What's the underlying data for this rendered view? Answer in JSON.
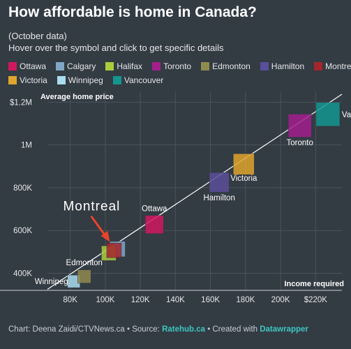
{
  "header": {
    "title": "How affordable is home in Canada?",
    "subtitle_line1": "(October data)",
    "subtitle_line2": "Hover over the symbol and click to get specific details"
  },
  "legend": [
    {
      "label": "Ottawa",
      "color": "#d1185f"
    },
    {
      "label": "Calgary",
      "color": "#7fa7c5"
    },
    {
      "label": "Halifax",
      "color": "#aacd3c"
    },
    {
      "label": "Toronto",
      "color": "#a31f8d"
    },
    {
      "label": "Edmonton",
      "color": "#8f8a4d"
    },
    {
      "label": "Hamilton",
      "color": "#5a4f9a"
    },
    {
      "label": "Montreal",
      "color": "#a5252c"
    },
    {
      "label": "Victoria",
      "color": "#e0a52c"
    },
    {
      "label": "Winnipeg",
      "color": "#a9dcef"
    },
    {
      "label": "Vancouver",
      "color": "#13968f"
    }
  ],
  "annotation": {
    "text": "Montreal",
    "arrow_color": "#e8432b"
  },
  "chart_data": {
    "type": "scatter",
    "xlabel": "Income required",
    "ylabel": "Average home price",
    "xlim": [
      67000,
      235000
    ],
    "ylim": [
      320000,
      1250000
    ],
    "x_ticks": [
      {
        "value": 80000,
        "label": "80K"
      },
      {
        "value": 100000,
        "label": "100K"
      },
      {
        "value": 120000,
        "label": "120K"
      },
      {
        "value": 140000,
        "label": "140K"
      },
      {
        "value": 160000,
        "label": "160K"
      },
      {
        "value": 180000,
        "label": "180K"
      },
      {
        "value": 200000,
        "label": "200K"
      },
      {
        "value": 220000,
        "label": "$220K"
      }
    ],
    "y_ticks": [
      {
        "value": 400000,
        "label": "400K"
      },
      {
        "value": 600000,
        "label": "600K"
      },
      {
        "value": 800000,
        "label": "800K"
      },
      {
        "value": 1000000,
        "label": "1M"
      },
      {
        "value": 1200000,
        "label": "$1.2M"
      }
    ],
    "points": [
      {
        "city": "Winnipeg",
        "x": 82000,
        "y": 362000,
        "label": "Winnipeg",
        "labeled": true
      },
      {
        "city": "Edmonton",
        "x": 88000,
        "y": 385000,
        "label": "Edmonton",
        "labeled": true
      },
      {
        "city": "Calgary",
        "x": 107000,
        "y": 513000,
        "label": "Calgary",
        "labeled": false
      },
      {
        "city": "Halifax",
        "x": 102000,
        "y": 494000,
        "label": "Halifax",
        "labeled": false
      },
      {
        "city": "Montreal",
        "x": 105000,
        "y": 507000,
        "label": "Montreal",
        "labeled": false
      },
      {
        "city": "Ottawa",
        "x": 128000,
        "y": 628000,
        "label": "Ottawa",
        "labeled": true
      },
      {
        "city": "Hamilton",
        "x": 165000,
        "y": 825000,
        "label": "Hamilton",
        "labeled": true
      },
      {
        "city": "Victoria",
        "x": 179000,
        "y": 910000,
        "label": "Victoria",
        "labeled": true
      },
      {
        "city": "Toronto",
        "x": 211000,
        "y": 1090000,
        "label": "Toronto",
        "labeled": true
      },
      {
        "city": "Vancouver",
        "x": 227000,
        "y": 1143000,
        "label": "Var",
        "labeled": true
      }
    ],
    "trend_line": {
      "x": [
        67000,
        235000
      ],
      "y": [
        325000,
        1237000
      ]
    },
    "grid": true
  },
  "footer": {
    "prefix": "Chart: Deena Zaidi/CTVNews.ca • Source: ",
    "source": "Ratehub.ca",
    "middle": " • Created with ",
    "tool": "Datawrapper"
  }
}
